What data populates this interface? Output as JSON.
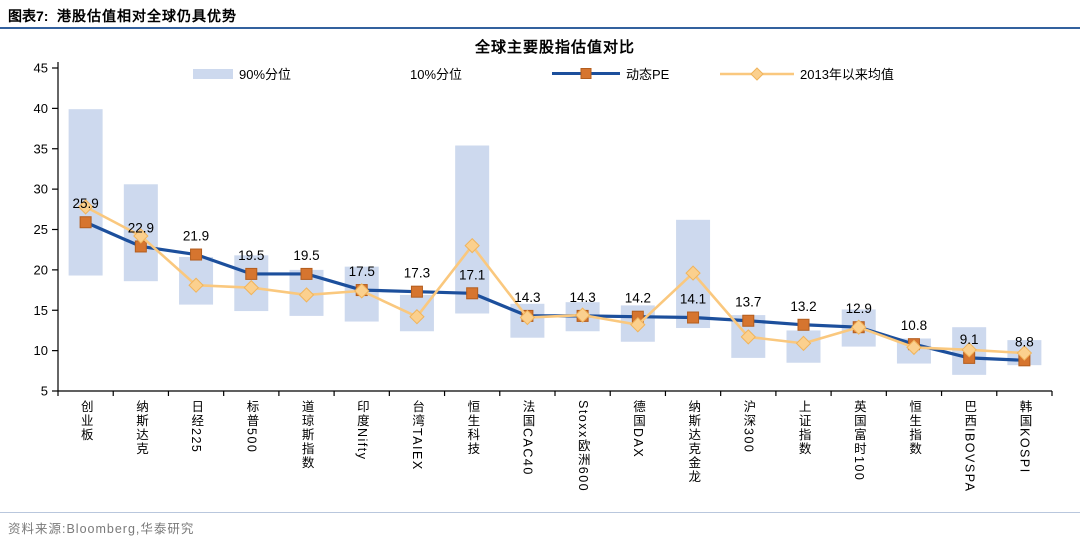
{
  "header": {
    "label": "图表7:",
    "title": "港股估值相对全球仍具优势",
    "rule_color": "#33619e"
  },
  "footer": {
    "source_text": "资料来源:Bloomberg,华泰研究",
    "rule_color": "#b9c7dd",
    "text_color": "#7a7a7a"
  },
  "chart_data": {
    "type": "line",
    "title": "全球主要股指估值对比",
    "ylim": [
      5,
      45
    ],
    "yticks": [
      5,
      10,
      15,
      20,
      25,
      30,
      35,
      40,
      45
    ],
    "grid": false,
    "legend_position": "top",
    "legend": [
      {
        "label": "90%分位",
        "swatch": "band",
        "color": "#cdd9ee"
      },
      {
        "label": "10%分位",
        "swatch": "none",
        "color": "#ffffff"
      },
      {
        "label": "动态PE",
        "swatch": "line-square",
        "line_color": "#1c4f9c",
        "marker_color": "#d6752f",
        "marker_stroke": "#b35d1e"
      },
      {
        "label": "2013年以来均值",
        "swatch": "line-diamond",
        "line_color": "#fac87e",
        "marker_color": "#fbd08e",
        "marker_stroke": "#f0b45c"
      }
    ],
    "categories": [
      "创业板",
      "纳斯达克",
      "日经225",
      "标普500",
      "道琼斯指数",
      "印度Nifty",
      "台湾TAIEX",
      "恒生科技",
      "法国CAC40",
      "Stoxx欧洲600",
      "德国DAX",
      "纳斯达克金龙",
      "沪深300",
      "上证指数",
      "英国富时100",
      "恒生指数",
      "巴西IBOVSPA",
      "韩国KOSPI"
    ],
    "series": [
      {
        "name": "90%分位-10%分位区间",
        "type": "range_bar",
        "color": "#cdd9ee",
        "high": [
          39.9,
          30.6,
          21.6,
          21.8,
          20.0,
          20.4,
          16.9,
          35.4,
          15.8,
          16.0,
          15.6,
          26.2,
          14.4,
          12.5,
          15.1,
          11.5,
          12.9,
          11.3
        ],
        "low": [
          19.3,
          18.6,
          15.7,
          14.9,
          14.3,
          13.6,
          12.4,
          14.6,
          11.6,
          12.4,
          11.1,
          12.8,
          9.1,
          8.5,
          10.5,
          8.4,
          7.0,
          8.2
        ]
      },
      {
        "name": "动态PE",
        "type": "line",
        "color": "#1c4f9c",
        "marker": "square",
        "marker_color": "#d6752f",
        "marker_stroke": "#b35d1e",
        "data_labels": true,
        "values": [
          25.9,
          22.9,
          21.9,
          19.5,
          19.5,
          17.5,
          17.3,
          17.1,
          14.3,
          14.3,
          14.2,
          14.1,
          13.7,
          13.2,
          12.9,
          10.8,
          9.1,
          8.8
        ]
      },
      {
        "name": "2013年以来均值",
        "type": "line",
        "color": "#fac87e",
        "marker": "diamond",
        "marker_color": "#fbd08e",
        "marker_stroke": "#f0b45c",
        "data_labels": false,
        "values": [
          27.8,
          24.2,
          18.1,
          17.8,
          16.9,
          17.4,
          14.2,
          23.0,
          14.1,
          14.4,
          13.2,
          19.6,
          11.7,
          10.9,
          12.9,
          10.4,
          10.1,
          9.7
        ]
      }
    ]
  }
}
